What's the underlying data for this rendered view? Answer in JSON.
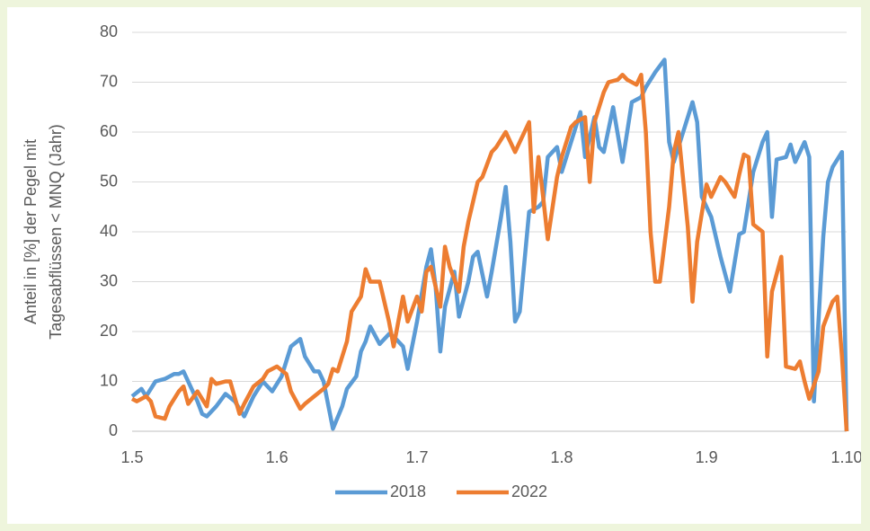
{
  "chart_data": {
    "type": "line",
    "y_label": [
      "Anteil in [%] der Pegel mit",
      "Tagesabflüssen < MNQ (Jahr)"
    ],
    "xlim": [
      0,
      153
    ],
    "xticks": [
      {
        "value": 0,
        "label": "1.5"
      },
      {
        "value": 31,
        "label": "1.6"
      },
      {
        "value": 61,
        "label": "1.7"
      },
      {
        "value": 92,
        "label": "1.8"
      },
      {
        "value": 123,
        "label": "1.9"
      },
      {
        "value": 153,
        "label": "1.10"
      }
    ],
    "ylim": [
      0,
      80
    ],
    "yticks": [
      0,
      10,
      20,
      30,
      40,
      50,
      60,
      70,
      80
    ],
    "grid": true,
    "legend": "bottom",
    "series": [
      {
        "name": "2018",
        "color": "#5b9bd5",
        "x": [
          0,
          2,
          3,
          5,
          7,
          9,
          10,
          11,
          13,
          14,
          15,
          16,
          18,
          20,
          22,
          24,
          26,
          28,
          29,
          30,
          32,
          34,
          36,
          37,
          39,
          40,
          41,
          43,
          45,
          46,
          48,
          49,
          50,
          51,
          53,
          55,
          56,
          58,
          59,
          61,
          63,
          64,
          65,
          66,
          67,
          69,
          70,
          72,
          73,
          74,
          76,
          77,
          79,
          80,
          81,
          82,
          83,
          85,
          87,
          88,
          89,
          91,
          92,
          94,
          96,
          97,
          99,
          100,
          101,
          103,
          105,
          107,
          109,
          110,
          112,
          114,
          115,
          116,
          118,
          120,
          121,
          122,
          124,
          126,
          128,
          130,
          131,
          133,
          135,
          136,
          137,
          138,
          140,
          141,
          142,
          144,
          145,
          146,
          148,
          149,
          150,
          152,
          153
        ],
        "values": [
          7,
          8.5,
          7,
          10,
          10.5,
          11.5,
          11.5,
          12,
          8,
          6,
          3.5,
          3,
          5,
          7.5,
          6,
          3,
          7,
          10,
          9,
          8,
          11,
          17,
          18.5,
          15,
          12,
          12,
          10,
          0.5,
          5,
          8.5,
          11,
          16,
          18,
          21,
          17.5,
          19.5,
          19,
          17,
          12.5,
          22,
          33,
          36.5,
          29,
          16,
          25,
          32,
          23,
          30,
          35,
          36,
          27,
          32,
          43,
          49,
          38,
          22,
          24,
          44,
          45,
          46,
          55,
          57,
          52,
          58,
          64,
          55,
          63,
          57,
          56,
          65,
          54,
          66,
          67,
          69,
          72,
          74.5,
          58,
          54,
          60,
          66,
          62,
          47,
          43,
          35,
          28,
          39.5,
          40,
          52,
          58,
          60,
          43,
          54.5,
          55,
          57.5,
          54,
          58,
          55,
          6,
          39,
          50,
          53,
          56,
          0
        ]
      },
      {
        "name": "2022",
        "color": "#ed7d31",
        "x": [
          0,
          1,
          3,
          4,
          5,
          7,
          8,
          10,
          11,
          12,
          14,
          16,
          17,
          18,
          20,
          21,
          23,
          24,
          26,
          28,
          29,
          31,
          33,
          34,
          36,
          37,
          39,
          41,
          42,
          43,
          44,
          46,
          47,
          49,
          50,
          51,
          53,
          54,
          55,
          56,
          58,
          59,
          61,
          62,
          63,
          64,
          66,
          67,
          68,
          70,
          71,
          72,
          74,
          75,
          77,
          78,
          80,
          81,
          82,
          83,
          85,
          86,
          87,
          88,
          89,
          91,
          92,
          94,
          95,
          97,
          98,
          99,
          101,
          102,
          104,
          105,
          106,
          108,
          109,
          110,
          111,
          112,
          113,
          115,
          116,
          117,
          119,
          120,
          121,
          123,
          124,
          126,
          127,
          129,
          130,
          131,
          132,
          133,
          135,
          136,
          137,
          139,
          140,
          142,
          143,
          144,
          145,
          147,
          148,
          150,
          151,
          152,
          153
        ],
        "values": [
          6.5,
          6,
          7,
          6,
          3,
          2.5,
          5,
          8,
          9,
          5.5,
          8,
          5,
          10.5,
          9.5,
          10,
          10,
          3.5,
          5.5,
          9,
          10.5,
          12,
          13,
          11.5,
          8,
          4.5,
          5.5,
          7,
          8.5,
          9.5,
          12.5,
          12,
          18,
          24,
          27,
          32.5,
          30,
          30,
          26,
          22,
          17,
          27,
          22,
          27,
          24,
          32,
          33,
          25,
          37,
          33,
          28,
          37,
          42,
          50,
          51,
          56,
          57,
          60,
          58,
          56,
          58,
          62,
          44,
          55,
          47,
          38.5,
          51,
          55,
          61,
          62,
          63,
          50,
          62,
          68,
          70,
          70.5,
          71.5,
          70.5,
          69.5,
          71.5,
          60,
          40,
          30,
          30,
          45,
          56,
          60,
          41,
          26,
          38,
          49.5,
          47,
          51,
          50,
          47,
          51.5,
          55.5,
          55,
          41.5,
          40,
          15,
          28,
          35,
          13,
          12.5,
          14,
          10,
          6.5,
          12,
          21,
          26,
          27,
          15,
          0
        ]
      }
    ]
  }
}
